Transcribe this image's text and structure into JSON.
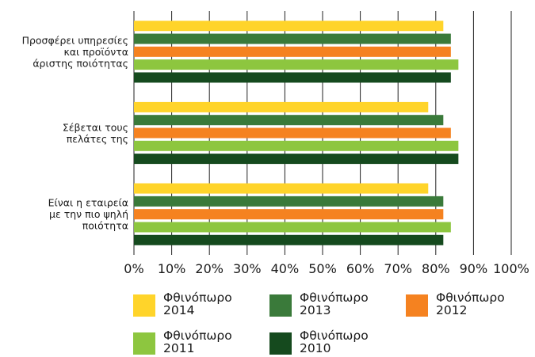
{
  "chart_data": {
    "type": "bar",
    "orientation": "horizontal",
    "categories": [
      "Προσφέρει υπηρεσίες και προϊόντα άριστης ποιότητας",
      "Σέβεται τους πελάτες της",
      "Είναι η εταιρεία με την πιο ψηλή ποιότητα"
    ],
    "category_lines": [
      [
        "Προσφέρει υπηρεσίες",
        "και προϊόντα",
        "άριστης ποιότητας"
      ],
      [
        "Σέβεται τους",
        "πελάτες της"
      ],
      [
        "Είναι η εταιρεία",
        "με την πιο ψηλή",
        "ποιότητα"
      ]
    ],
    "series": [
      {
        "name": "Φθινόπωρο 2014",
        "color": "#ffd42a",
        "values": [
          82,
          78,
          78
        ]
      },
      {
        "name": "Φθινόπωρο 2013",
        "color": "#3a7a3a",
        "values": [
          84,
          82,
          82
        ]
      },
      {
        "name": "Φθινόπωρο 2012",
        "color": "#f58220",
        "values": [
          84,
          84,
          82
        ]
      },
      {
        "name": "Φθινόπωρο 2011",
        "color": "#8dc63f",
        "values": [
          86,
          86,
          84
        ]
      },
      {
        "name": "Φθινόπωρο 2010",
        "color": "#154a1e",
        "values": [
          84,
          86,
          82
        ]
      }
    ],
    "x_ticks": [
      "0%",
      "10%",
      "20%",
      "30%",
      "40%",
      "50%",
      "60%",
      "70%",
      "80%",
      "90%",
      "100%"
    ],
    "xlim": [
      0,
      100
    ],
    "grid": "vertical",
    "legend_position": "bottom"
  }
}
